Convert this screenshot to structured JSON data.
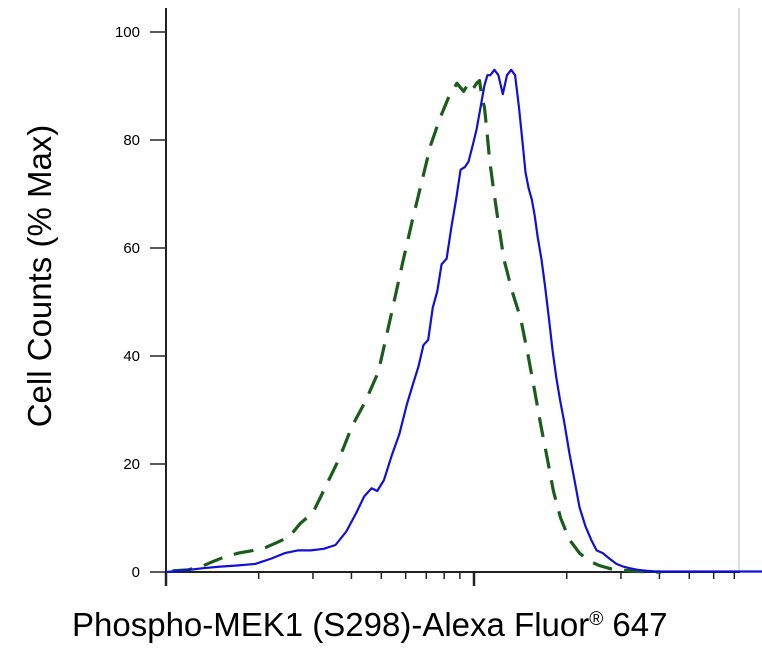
{
  "chart_data": {
    "type": "line",
    "xlabel": "Phospho-MEK1 (S298)-Alexa Fluor",
    "xlabel_mark": "®",
    "xlabel_suffix": " 647",
    "ylabel": "Cell Counts (% Max)",
    "x_scale": "log",
    "xlim": [
      10,
      1000
    ],
    "ylim": [
      0,
      100
    ],
    "y_ticks": [
      0,
      20,
      40,
      60,
      80,
      100
    ],
    "y_tick_labels": [
      "0",
      "20",
      "40",
      "60",
      "80",
      "100"
    ],
    "x_ticks_labeled": false,
    "grid": false,
    "legend": "none",
    "series": [
      {
        "line_style": "dashed",
        "color": "#1a5c1a",
        "x": [
          10.5,
          11.8,
          13.0,
          14.3,
          15.5,
          17.2,
          19.2,
          21.0,
          23.0,
          25.1,
          27.3,
          30.0,
          33.1,
          36.5,
          40.2,
          44.3,
          48.9,
          54.0,
          58.5,
          63.0,
          67.5,
          72.3,
          77.5,
          82.8,
          88.0,
          92.5,
          96.0,
          99.3,
          102.0,
          104.2,
          106.0,
          108.2,
          110.0,
          112.5,
          115.0,
          119.0,
          125.0,
          133.0,
          141.7,
          150.0,
          157.4,
          165.0,
          173.0,
          181.0,
          191.0,
          204.0,
          220.0,
          237.0,
          255.0,
          278.0,
          310.0,
          345.0,
          385.0,
          405.0
        ],
        "y": [
          0.2,
          0.4,
          1.0,
          2.0,
          2.8,
          3.5,
          4.0,
          4.5,
          5.5,
          6.5,
          9.0,
          11.0,
          16.0,
          21.0,
          27.0,
          31.5,
          37.0,
          48.0,
          57.0,
          65.0,
          72.0,
          79.0,
          84.0,
          88.0,
          90.5,
          89.0,
          90.5,
          89.5,
          90.5,
          91.0,
          88.0,
          86.0,
          82.0,
          76.0,
          72.0,
          66.0,
          58.0,
          52.0,
          47.0,
          40.0,
          33.5,
          27.0,
          21.0,
          15.0,
          10.0,
          6.0,
          3.5,
          2.0,
          1.2,
          0.6,
          0.3,
          0.1,
          0.0,
          0.0
        ]
      },
      {
        "line_style": "solid",
        "color": "#1010d8",
        "x": [
          10.0,
          11.5,
          13.2,
          15.0,
          17.0,
          19.5,
          22.0,
          24.3,
          26.8,
          29.5,
          32.5,
          35.5,
          38.5,
          41.5,
          44.0,
          46.5,
          48.5,
          51.0,
          54.0,
          57.2,
          60.5,
          63.5,
          66.0,
          68.5,
          71.0,
          73.5,
          76.0,
          78.5,
          81.5,
          84.5,
          87.5,
          90.5,
          93.5,
          96.0,
          99.0,
          102.0,
          105.0,
          108.0,
          110.5,
          113.0,
          116.5,
          120.0,
          124.0,
          128.0,
          132.0,
          136.0,
          140.0,
          143.5,
          147.0,
          150.5,
          154.0,
          157.4,
          161.0,
          165.5,
          170.0,
          175.0,
          180.0,
          185.0,
          190.0,
          196.0,
          204.0,
          212.0,
          220.0,
          230.0,
          240.0,
          250.0,
          262.0,
          275.0,
          290.0,
          305.0,
          320.0,
          340.0,
          365.0,
          390.0,
          420.0,
          460.0,
          500.0,
          560.0,
          650.0,
          800.0,
          1000.0
        ],
        "y": [
          0.0,
          0.3,
          0.7,
          1.0,
          1.2,
          1.5,
          2.5,
          3.5,
          4.0,
          4.0,
          4.3,
          5.0,
          7.5,
          11.0,
          14.0,
          15.5,
          15.0,
          17.0,
          21.5,
          25.5,
          31.0,
          35.0,
          38.0,
          42.0,
          43.0,
          49.0,
          52.0,
          57.0,
          58.0,
          64.0,
          69.0,
          74.5,
          75.0,
          76.0,
          79.0,
          82.0,
          86.0,
          90.0,
          92.0,
          92.0,
          93.0,
          92.0,
          88.5,
          92.0,
          93.0,
          92.0,
          86.0,
          80.0,
          74.0,
          71.0,
          69.0,
          66.0,
          62.0,
          58.0,
          53.0,
          47.0,
          41.0,
          36.0,
          32.0,
          28.0,
          22.0,
          17.0,
          12.0,
          8.5,
          6.0,
          4.0,
          3.5,
          2.5,
          1.5,
          1.0,
          0.7,
          0.4,
          0.2,
          0.1,
          0.1,
          0.1,
          0.1,
          0.1,
          0.1,
          0.1,
          0.1
        ]
      }
    ]
  }
}
